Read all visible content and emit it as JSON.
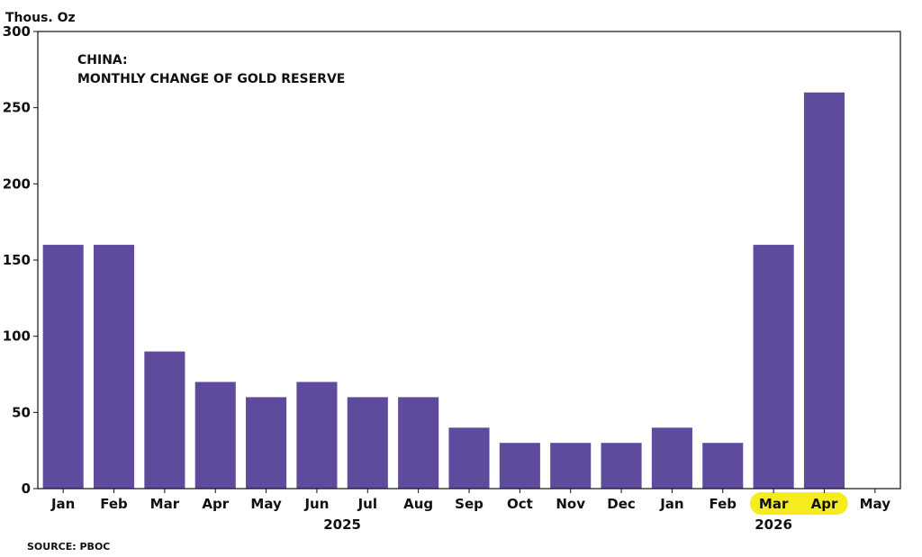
{
  "chart_data": {
    "type": "bar",
    "title_lines": [
      "CHINA:",
      "MONTHLY CHANGE OF GOLD RESERVE"
    ],
    "ylabel": "Thous. Oz",
    "source": "SOURCE: PBOC",
    "ylim": [
      0,
      300
    ],
    "yticks": [
      0,
      50,
      100,
      150,
      200,
      250,
      300
    ],
    "categories": [
      "Jan",
      "Feb",
      "Mar",
      "Apr",
      "May",
      "Jun",
      "Jul",
      "Aug",
      "Sep",
      "Oct",
      "Nov",
      "Dec",
      "Jan",
      "Feb",
      "Mar",
      "Apr",
      "May"
    ],
    "values": [
      160,
      160,
      90,
      70,
      60,
      70,
      60,
      60,
      40,
      30,
      30,
      30,
      40,
      30,
      160,
      260,
      null
    ],
    "year_groups": [
      {
        "label": "2025",
        "start": 0,
        "end": 11
      },
      {
        "label": "2026",
        "start": 12,
        "end": 16
      }
    ],
    "highlighted_categories": [
      14,
      15
    ],
    "bar_color": "#5f4b9e",
    "highlight_color": "#f4ec1c",
    "grid": false
  }
}
